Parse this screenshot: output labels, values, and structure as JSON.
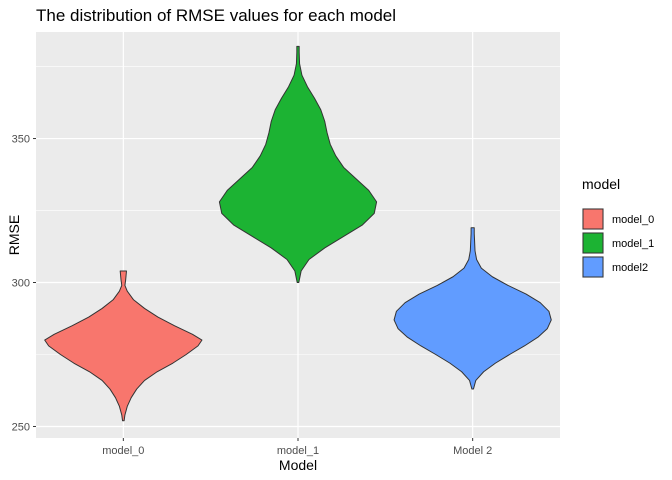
{
  "chart_data": {
    "type": "violin",
    "title": "The distribution of RMSE values for each model",
    "xlabel": "Model",
    "ylabel": "RMSE",
    "categories": [
      "model_0",
      "model_1",
      "Model 2"
    ],
    "ylim": [
      246,
      387
    ],
    "yticks": [
      250,
      300,
      350
    ],
    "grid": true,
    "legend": {
      "title": "model",
      "position": "right",
      "entries": [
        {
          "label": "model_0",
          "color": "#F8766D"
        },
        {
          "label": "model_1",
          "color": "#1CB333"
        },
        {
          "label": "model2",
          "color": "#619CFF"
        }
      ]
    },
    "series": [
      {
        "category": "model_0",
        "color": "#F8766D",
        "min": 252,
        "max": 304,
        "profile": [
          [
            252,
            0.0
          ],
          [
            254,
            0.02
          ],
          [
            257,
            0.05
          ],
          [
            260,
            0.1
          ],
          [
            263,
            0.17
          ],
          [
            266,
            0.27
          ],
          [
            269,
            0.43
          ],
          [
            272,
            0.63
          ],
          [
            275,
            0.8
          ],
          [
            278,
            0.95
          ],
          [
            280,
            1.0
          ],
          [
            282,
            0.88
          ],
          [
            285,
            0.65
          ],
          [
            288,
            0.44
          ],
          [
            291,
            0.27
          ],
          [
            294,
            0.13
          ],
          [
            297,
            0.05
          ],
          [
            299,
            0.02
          ],
          [
            301,
            0.03
          ],
          [
            304,
            0.04
          ]
        ]
      },
      {
        "category": "model_1",
        "color": "#1CB333",
        "min": 300,
        "max": 382,
        "profile": [
          [
            300,
            0.0
          ],
          [
            304,
            0.04
          ],
          [
            308,
            0.14
          ],
          [
            312,
            0.34
          ],
          [
            316,
            0.58
          ],
          [
            320,
            0.82
          ],
          [
            324,
            0.97
          ],
          [
            328,
            1.0
          ],
          [
            332,
            0.9
          ],
          [
            336,
            0.74
          ],
          [
            340,
            0.58
          ],
          [
            344,
            0.48
          ],
          [
            348,
            0.41
          ],
          [
            352,
            0.37
          ],
          [
            356,
            0.34
          ],
          [
            360,
            0.29
          ],
          [
            364,
            0.21
          ],
          [
            368,
            0.12
          ],
          [
            372,
            0.05
          ],
          [
            376,
            0.02
          ],
          [
            380,
            0.015
          ],
          [
            382,
            0.015
          ]
        ]
      },
      {
        "category": "Model 2",
        "color": "#619CFF",
        "min": 263,
        "max": 319,
        "profile": [
          [
            263,
            0.0
          ],
          [
            266,
            0.04
          ],
          [
            269,
            0.14
          ],
          [
            272,
            0.29
          ],
          [
            275,
            0.47
          ],
          [
            278,
            0.66
          ],
          [
            281,
            0.83
          ],
          [
            284,
            0.95
          ],
          [
            287,
            1.0
          ],
          [
            290,
            0.97
          ],
          [
            293,
            0.86
          ],
          [
            296,
            0.68
          ],
          [
            299,
            0.45
          ],
          [
            302,
            0.25
          ],
          [
            305,
            0.11
          ],
          [
            308,
            0.05
          ],
          [
            311,
            0.03
          ],
          [
            314,
            0.025
          ],
          [
            317,
            0.02
          ],
          [
            319,
            0.02
          ]
        ]
      }
    ]
  }
}
